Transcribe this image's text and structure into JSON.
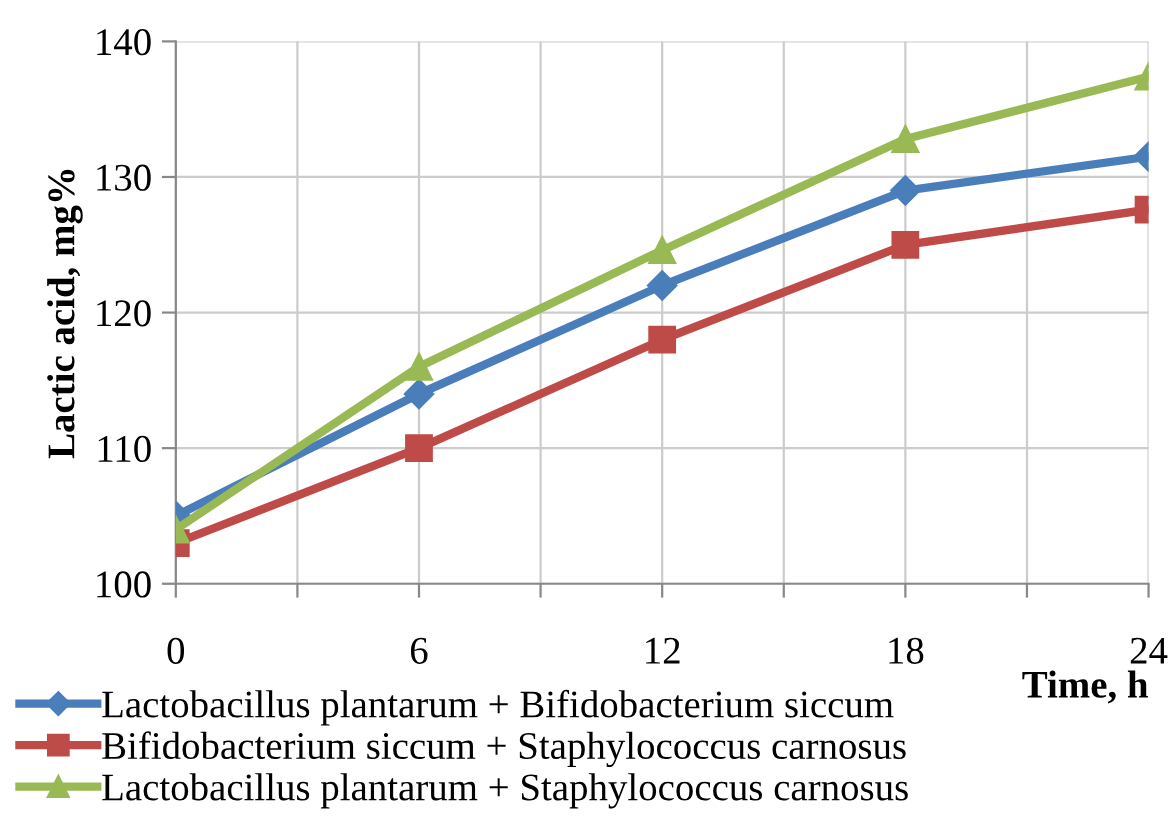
{
  "chart_data": {
    "type": "line",
    "xlabel": "Time, h",
    "ylabel": "Lactic acid, mg%",
    "x": [
      0,
      6,
      12,
      18,
      24
    ],
    "series": [
      {
        "name": "Lactobacillus plantarum + Bifidobacterium siccum",
        "color": "#4a7ebb",
        "marker": "diamond",
        "values": [
          105,
          114,
          122,
          129,
          131.5
        ]
      },
      {
        "name": "Bifidobacterium siccum + Staphylococcus carnosus",
        "color": "#be4b48",
        "marker": "square",
        "values": [
          103,
          110,
          118,
          125,
          127.6
        ]
      },
      {
        "name": "Lactobacillus plantarum + Staphylococcus carnosus",
        "color": "#98b954",
        "marker": "triangle",
        "values": [
          104,
          116,
          124.6,
          132.8,
          137.4
        ]
      }
    ],
    "xlim": [
      0,
      24
    ],
    "xticks": [
      0,
      {
        "value": 3,
        "label": null
      },
      6,
      {
        "value": 9,
        "label": null
      },
      12,
      {
        "value": 15,
        "label": null
      },
      18,
      {
        "value": 21,
        "label": null
      },
      24
    ],
    "ylim": [
      100,
      140
    ],
    "yticks": [
      100,
      110,
      120,
      130,
      140
    ],
    "grid": true,
    "legend": "bottom left",
    "line_style": "solid"
  }
}
